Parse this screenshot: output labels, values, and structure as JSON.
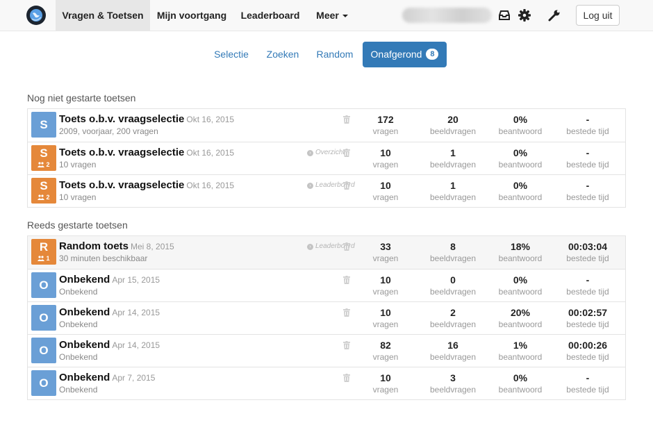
{
  "nav": {
    "logo": "globe-logo-icon",
    "items": [
      {
        "label": "Vragen & Toetsen",
        "active": true
      },
      {
        "label": "Mijn voortgang",
        "active": false
      },
      {
        "label": "Leaderboard",
        "active": false
      },
      {
        "label": "Meer",
        "active": false,
        "dropdown": true
      }
    ],
    "icons": [
      "inbox-icon",
      "gear-icon",
      "wrench-icon"
    ],
    "logout_label": "Log uit"
  },
  "pills": [
    {
      "label": "Selectie",
      "active": false
    },
    {
      "label": "Zoeken",
      "active": false
    },
    {
      "label": "Random",
      "active": false
    },
    {
      "label": "Onafgerond",
      "active": true,
      "badge": "8"
    }
  ],
  "colors": {
    "accent": "#337ab7",
    "avatar_blue": "#6a9fd6",
    "avatar_orange": "#e5883a"
  },
  "stat_labels": {
    "questions": "vragen",
    "images": "beeldvragen",
    "answered": "beantwoord",
    "time": "bestede tijd"
  },
  "sections": [
    {
      "title": "Nog niet gestarte toetsen",
      "tests": [
        {
          "letter": "S",
          "color": "blue",
          "group": "",
          "title": "Toets o.b.v. vraagselectie",
          "date": "Okt 16, 2015",
          "subtitle": "2009, voorjaar, 200 vragen",
          "link": "",
          "questions": "172",
          "images": "20",
          "answered": "0%",
          "time": "-"
        },
        {
          "letter": "S",
          "color": "orange",
          "group": "2",
          "title": "Toets o.b.v. vraagselectie",
          "date": "Okt 16, 2015",
          "subtitle": "10 vragen",
          "link": "Overzicht",
          "questions": "10",
          "images": "1",
          "answered": "0%",
          "time": "-"
        },
        {
          "letter": "S",
          "color": "orange",
          "group": "2",
          "title": "Toets o.b.v. vraagselectie",
          "date": "Okt 16, 2015",
          "subtitle": "10 vragen",
          "link": "Leaderboard",
          "questions": "10",
          "images": "1",
          "answered": "0%",
          "time": "-"
        }
      ]
    },
    {
      "title": "Reeds gestarte toetsen",
      "tests": [
        {
          "letter": "R",
          "color": "orange",
          "group": "1",
          "title": "Random toets",
          "date": "Mei 8, 2015",
          "subtitle": "30 minuten beschikbaar",
          "link": "Leaderboard",
          "questions": "33",
          "images": "8",
          "answered": "18%",
          "time": "00:03:04"
        },
        {
          "letter": "O",
          "color": "blue",
          "group": "",
          "title": "Onbekend",
          "date": "Apr 15, 2015",
          "subtitle": "Onbekend",
          "link": "",
          "questions": "10",
          "images": "0",
          "answered": "0%",
          "time": "-"
        },
        {
          "letter": "O",
          "color": "blue",
          "group": "",
          "title": "Onbekend",
          "date": "Apr 14, 2015",
          "subtitle": "Onbekend",
          "link": "",
          "questions": "10",
          "images": "2",
          "answered": "20%",
          "time": "00:02:57"
        },
        {
          "letter": "O",
          "color": "blue",
          "group": "",
          "title": "Onbekend",
          "date": "Apr 14, 2015",
          "subtitle": "Onbekend",
          "link": "",
          "questions": "82",
          "images": "16",
          "answered": "1%",
          "time": "00:00:26"
        },
        {
          "letter": "O",
          "color": "blue",
          "group": "",
          "title": "Onbekend",
          "date": "Apr 7, 2015",
          "subtitle": "Onbekend",
          "link": "",
          "questions": "10",
          "images": "3",
          "answered": "0%",
          "time": "-"
        }
      ]
    }
  ]
}
